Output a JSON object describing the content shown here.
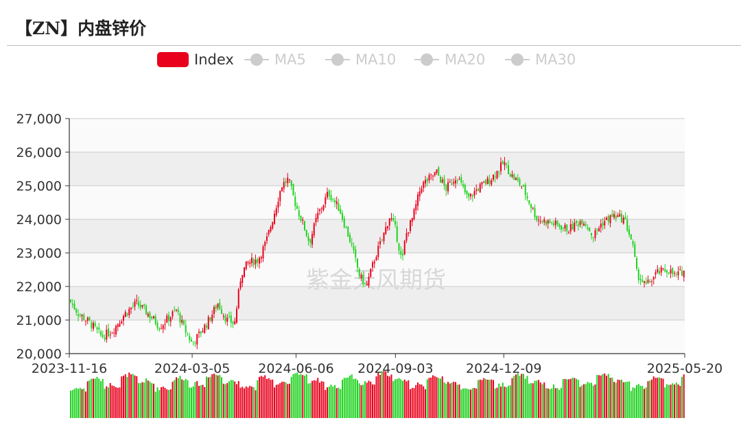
{
  "title": "【ZN】内盘锌价",
  "watermark": "紫金天风期货",
  "legend": [
    {
      "label": "Index",
      "color": "#e8001c",
      "shape": "rect",
      "active": true
    },
    {
      "label": "MA5",
      "color": "#cccccc",
      "shape": "line-circle",
      "active": false
    },
    {
      "label": "MA10",
      "color": "#cccccc",
      "shape": "line-circle",
      "active": false
    },
    {
      "label": "MA20",
      "color": "#cccccc",
      "shape": "line-circle",
      "active": false
    },
    {
      "label": "MA30",
      "color": "#cccccc",
      "shape": "line-circle",
      "active": false
    }
  ],
  "colors": {
    "up": "#e8001c",
    "down": "#1fd21f",
    "grid_band": "#eeeeee",
    "grid_line": "#cccccc"
  },
  "chart_data": {
    "type": "candlestick",
    "ylim": [
      20000,
      27000
    ],
    "yticks": [
      "20,000",
      "21,000",
      "22,000",
      "23,000",
      "24,000",
      "25,000",
      "26,000",
      "27,000"
    ],
    "xticks": [
      "2023-11-16",
      "2024-03-05",
      "2024-06-06",
      "2024-09-03",
      "2024-12-09",
      "2025-05-20"
    ],
    "volume_panel": true,
    "series_path": [
      [
        "2023-11-16",
        21600
      ],
      [
        "2023-11-24",
        21200
      ],
      [
        "2023-12-05",
        20900
      ],
      [
        "2023-12-15",
        20500
      ],
      [
        "2023-12-25",
        20700
      ],
      [
        "2024-01-05",
        21200
      ],
      [
        "2024-01-15",
        21500
      ],
      [
        "2024-01-22",
        21300
      ],
      [
        "2024-01-31",
        21000
      ],
      [
        "2024-02-05",
        20800
      ],
      [
        "2024-02-20",
        21300
      ],
      [
        "2024-02-26",
        20800
      ],
      [
        "2024-03-05",
        20300
      ],
      [
        "2024-03-12",
        20600
      ],
      [
        "2024-03-20",
        21000
      ],
      [
        "2024-03-28",
        21500
      ],
      [
        "2024-04-05",
        21000
      ],
      [
        "2024-04-12",
        20900
      ],
      [
        "2024-04-18",
        22400
      ],
      [
        "2024-04-24",
        22700
      ],
      [
        "2024-05-03",
        22800
      ],
      [
        "2024-05-10",
        23300
      ],
      [
        "2024-05-16",
        24000
      ],
      [
        "2024-05-24",
        25000
      ],
      [
        "2024-05-30",
        25200
      ],
      [
        "2024-06-06",
        24400
      ],
      [
        "2024-06-13",
        23800
      ],
      [
        "2024-06-18",
        23300
      ],
      [
        "2024-06-25",
        24100
      ],
      [
        "2024-07-01",
        24500
      ],
      [
        "2024-07-05",
        24800
      ],
      [
        "2024-07-15",
        24300
      ],
      [
        "2024-07-25",
        23300
      ],
      [
        "2024-08-02",
        22300
      ],
      [
        "2024-08-08",
        22000
      ],
      [
        "2024-08-16",
        22900
      ],
      [
        "2024-08-22",
        23400
      ],
      [
        "2024-08-29",
        24100
      ],
      [
        "2024-09-03",
        23700
      ],
      [
        "2024-09-09",
        22700
      ],
      [
        "2024-09-12",
        23500
      ],
      [
        "2024-09-19",
        24100
      ],
      [
        "2024-09-26",
        25000
      ],
      [
        "2024-10-10",
        25400
      ],
      [
        "2024-10-18",
        24900
      ],
      [
        "2024-10-28",
        25300
      ],
      [
        "2024-11-07",
        24600
      ],
      [
        "2024-11-15",
        24900
      ],
      [
        "2024-11-27",
        25200
      ],
      [
        "2024-12-05",
        25500
      ],
      [
        "2024-12-09",
        25700
      ],
      [
        "2024-12-16",
        25300
      ],
      [
        "2024-12-25",
        25000
      ],
      [
        "2025-01-08",
        24000
      ],
      [
        "2025-01-20",
        23900
      ],
      [
        "2025-02-05",
        23700
      ],
      [
        "2025-02-18",
        24000
      ],
      [
        "2025-02-27",
        23500
      ],
      [
        "2025-03-07",
        23900
      ],
      [
        "2025-03-17",
        24100
      ],
      [
        "2025-03-27",
        24000
      ],
      [
        "2025-04-03",
        23300
      ],
      [
        "2025-04-07",
        22400
      ],
      [
        "2025-04-15",
        22000
      ],
      [
        "2025-04-25",
        22400
      ],
      [
        "2025-05-05",
        22500
      ],
      [
        "2025-05-12",
        22300
      ],
      [
        "2025-05-20",
        22500
      ]
    ]
  }
}
